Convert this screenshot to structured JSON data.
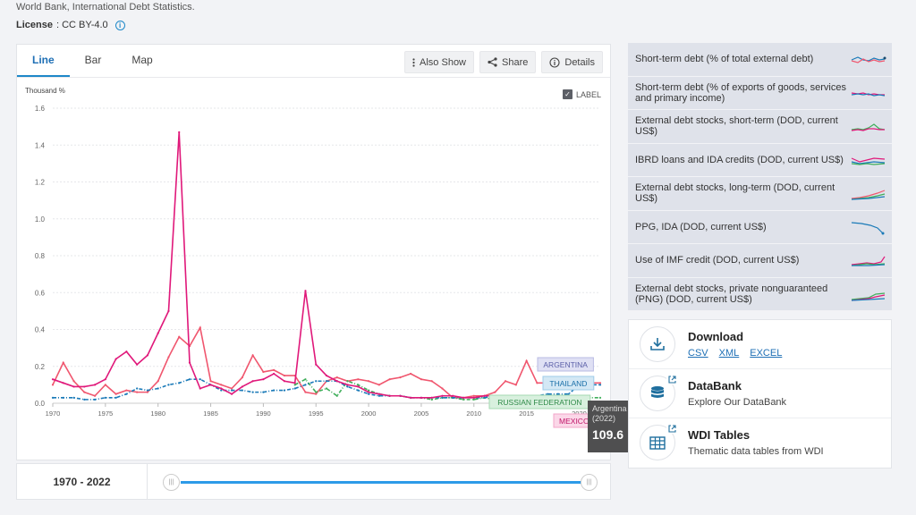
{
  "header": {
    "source": "World Bank, International Debt Statistics.",
    "license_label": "License",
    "license_value": ": CC BY-4.0"
  },
  "tabs": [
    {
      "label": "Line",
      "active": true
    },
    {
      "label": "Bar",
      "active": false
    },
    {
      "label": "Map",
      "active": false
    }
  ],
  "toolbar": {
    "also_show": "Also Show",
    "share": "Share",
    "details": "Details"
  },
  "label_toggle": {
    "label": "LABEL",
    "checked": true
  },
  "range": {
    "label": "1970 - 2022",
    "start": 1970,
    "end": 2022
  },
  "tooltip": {
    "country": "Argentina",
    "year": "(2022)",
    "value": "109.6"
  },
  "chart_data": {
    "type": "line",
    "ylabel": "Thousand %",
    "ylim": [
      0,
      1.6
    ],
    "yticks": [
      "0.0",
      "0.2",
      "0.4",
      "0.6",
      "0.8",
      "1.0",
      "1.2",
      "1.4",
      "1.6"
    ],
    "xlim": [
      1970,
      2022
    ],
    "xticks": [
      1970,
      1975,
      1980,
      1985,
      1990,
      1995,
      2000,
      2005,
      2010,
      2015,
      2020
    ],
    "series": [
      {
        "name": "MEXICO",
        "color": "#e0187a",
        "x": [
          1970,
          1971,
          1972,
          1973,
          1974,
          1975,
          1976,
          1977,
          1978,
          1979,
          1980,
          1981,
          1982,
          1983,
          1984,
          1985,
          1986,
          1987,
          1988,
          1989,
          1990,
          1991,
          1992,
          1993,
          1994,
          1995,
          1996,
          1997,
          1998,
          1999,
          2000,
          2001,
          2002,
          2003,
          2004,
          2005,
          2006,
          2007,
          2008,
          2009,
          2010,
          2011,
          2012,
          2013,
          2014,
          2015,
          2016,
          2017,
          2018
        ],
        "values": [
          0.13,
          0.11,
          0.09,
          0.09,
          0.1,
          0.13,
          0.24,
          0.28,
          0.21,
          0.26,
          0.38,
          0.5,
          1.47,
          0.22,
          0.08,
          0.1,
          0.08,
          0.05,
          0.09,
          0.12,
          0.13,
          0.16,
          0.12,
          0.11,
          0.61,
          0.21,
          0.15,
          0.12,
          0.1,
          0.09,
          0.06,
          0.05,
          0.04,
          0.04,
          0.03,
          0.03,
          0.03,
          0.04,
          0.04,
          0.03,
          0.03,
          0.04,
          0.04,
          0.04,
          0.04,
          0.04,
          0.03,
          0.03,
          0.03
        ]
      },
      {
        "name": "ARGENTINA",
        "color": "#f0566e",
        "x": [
          1970,
          1971,
          1972,
          1973,
          1974,
          1975,
          1976,
          1977,
          1978,
          1979,
          1980,
          1981,
          1982,
          1983,
          1984,
          1985,
          1986,
          1987,
          1988,
          1989,
          1990,
          1991,
          1992,
          1993,
          1994,
          1995,
          1996,
          1997,
          1998,
          1999,
          2000,
          2001,
          2002,
          2003,
          2004,
          2005,
          2006,
          2007,
          2008,
          2009,
          2010,
          2011,
          2012,
          2013,
          2014,
          2015,
          2016,
          2017,
          2018,
          2019,
          2020,
          2021,
          2022
        ],
        "values": [
          0.1,
          0.22,
          0.12,
          0.06,
          0.04,
          0.1,
          0.05,
          0.07,
          0.06,
          0.06,
          0.12,
          0.25,
          0.36,
          0.31,
          0.41,
          0.12,
          0.1,
          0.08,
          0.14,
          0.26,
          0.17,
          0.18,
          0.15,
          0.15,
          0.06,
          0.05,
          0.12,
          0.14,
          0.12,
          0.13,
          0.12,
          0.1,
          0.13,
          0.14,
          0.16,
          0.13,
          0.12,
          0.08,
          0.03,
          0.03,
          0.04,
          0.04,
          0.06,
          0.12,
          0.1,
          0.23,
          0.11,
          0.11,
          0.1,
          0.1,
          0.11,
          0.11,
          0.11
        ]
      },
      {
        "name": "THAILAND",
        "color": "#1a7ab8",
        "x": [
          1970,
          1971,
          1972,
          1973,
          1974,
          1975,
          1976,
          1977,
          1978,
          1979,
          1980,
          1981,
          1982,
          1983,
          1984,
          1985,
          1986,
          1987,
          1988,
          1989,
          1990,
          1991,
          1992,
          1993,
          1994,
          1995,
          1996,
          1997,
          1998,
          1999,
          2000,
          2001,
          2002,
          2003,
          2004,
          2005,
          2006,
          2007,
          2008,
          2009,
          2010,
          2011,
          2012,
          2013,
          2014,
          2015,
          2016,
          2017,
          2018,
          2019,
          2020,
          2021,
          2022
        ],
        "values": [
          0.03,
          0.03,
          0.03,
          0.02,
          0.02,
          0.03,
          0.03,
          0.05,
          0.08,
          0.07,
          0.08,
          0.1,
          0.11,
          0.13,
          0.13,
          0.1,
          0.07,
          0.07,
          0.07,
          0.06,
          0.06,
          0.07,
          0.07,
          0.08,
          0.1,
          0.12,
          0.12,
          0.12,
          0.09,
          0.07,
          0.05,
          0.04,
          0.04,
          0.04,
          0.03,
          0.03,
          0.03,
          0.03,
          0.03,
          0.03,
          0.03,
          0.03,
          0.04,
          0.04,
          0.04,
          0.04,
          0.04,
          0.05,
          0.05,
          0.05,
          0.1,
          0.1,
          0.1
        ]
      },
      {
        "name": "RUSSIAN FEDERATION",
        "color": "#3fae5a",
        "x": [
          1993,
          1994,
          1995,
          1996,
          1997,
          1998,
          1999,
          2000,
          2001,
          2002,
          2003,
          2004,
          2005,
          2006,
          2007,
          2008,
          2009,
          2010,
          2011,
          2012,
          2013,
          2014,
          2015,
          2016,
          2017,
          2018,
          2019,
          2020,
          2021,
          2022
        ],
        "values": [
          0.1,
          0.13,
          0.06,
          0.08,
          0.04,
          0.12,
          0.1,
          0.07,
          0.05,
          0.04,
          0.04,
          0.03,
          0.03,
          0.02,
          0.03,
          0.03,
          0.02,
          0.02,
          0.03,
          0.02,
          0.02,
          0.02,
          0.02,
          0.02,
          0.02,
          0.03,
          0.02,
          0.03,
          0.03,
          0.03
        ]
      }
    ],
    "series_labels": [
      {
        "text": "ARGENTINA",
        "bg": "#dfe0f4",
        "fg": "#5b5fa8",
        "border": "#b9bbe3"
      },
      {
        "text": "THAILAND",
        "bg": "#d4e8f5",
        "fg": "#1a6fa8",
        "border": "#9ecbe8"
      },
      {
        "text": "RUSSIAN FEDERATION",
        "bg": "#d8f0de",
        "fg": "#2f8a48",
        "border": "#a5dab2"
      },
      {
        "text": "MEXICO",
        "bg": "#fbd7e8",
        "fg": "#c01468",
        "border": "#f3a4c9"
      }
    ]
  },
  "indicators": [
    {
      "label": "Short-term debt (% of total external debt)"
    },
    {
      "label": "Short-term debt (% of exports of goods, services and primary income)"
    },
    {
      "label": "External debt stocks, short-term (DOD, current US$)"
    },
    {
      "label": "IBRD loans and IDA credits (DOD, current US$)"
    },
    {
      "label": "External debt stocks, long-term (DOD, current US$)"
    },
    {
      "label": "PPG, IDA (DOD, current US$)"
    },
    {
      "label": "Use of IMF credit (DOD, current US$)"
    },
    {
      "label": "External debt stocks, private nonguaranteed (PNG) (DOD, current US$)"
    }
  ],
  "actions": {
    "download": {
      "title": "Download",
      "links": [
        "CSV",
        "XML",
        "EXCEL"
      ]
    },
    "databank": {
      "title": "DataBank",
      "subtitle": "Explore Our DataBank"
    },
    "wdi": {
      "title": "WDI Tables",
      "subtitle": "Thematic data tables from WDI"
    }
  }
}
